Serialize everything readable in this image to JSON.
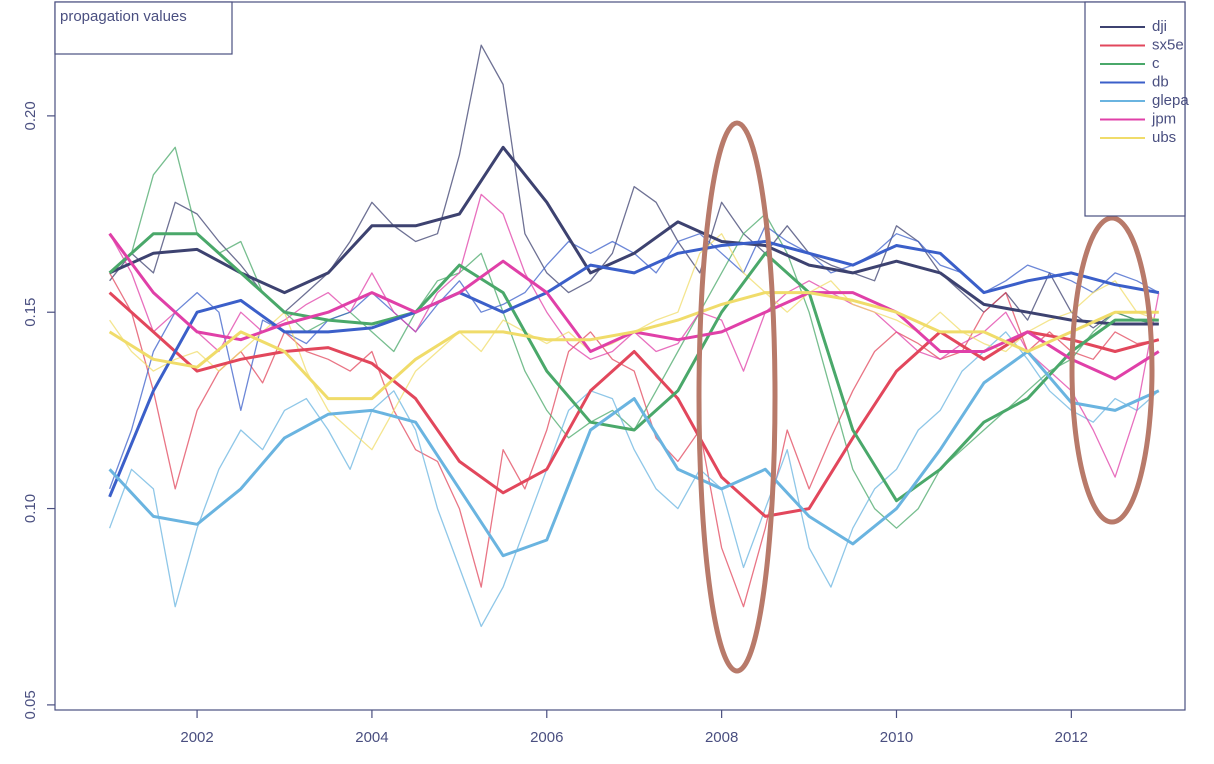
{
  "chart_data": {
    "type": "line",
    "title": "propagation values",
    "x": [
      2001,
      2001.25,
      2001.5,
      2001.75,
      2002,
      2002.25,
      2002.5,
      2002.75,
      2003,
      2003.25,
      2003.5,
      2003.75,
      2004,
      2004.25,
      2004.5,
      2004.75,
      2005,
      2005.25,
      2005.5,
      2005.75,
      2006,
      2006.25,
      2006.5,
      2006.75,
      2007,
      2007.25,
      2007.5,
      2007.75,
      2008,
      2008.25,
      2008.5,
      2008.75,
      2009,
      2009.25,
      2009.5,
      2009.75,
      2010,
      2010.25,
      2010.5,
      2010.75,
      2011,
      2011.25,
      2011.5,
      2011.75,
      2012,
      2012.25,
      2012.5,
      2012.75,
      2013
    ],
    "trend_x": [
      2001,
      2001.5,
      2002,
      2002.5,
      2003,
      2003.5,
      2004,
      2004.5,
      2005,
      2005.5,
      2006,
      2006.5,
      2007,
      2007.5,
      2008,
      2008.5,
      2009,
      2009.5,
      2010,
      2010.5,
      2011,
      2011.5,
      2012,
      2012.5,
      2013
    ],
    "series": [
      {
        "name": "dji",
        "color": "#3d4270",
        "values": [
          0.158,
          0.165,
          0.16,
          0.178,
          0.175,
          0.168,
          0.162,
          0.155,
          0.15,
          0.155,
          0.16,
          0.168,
          0.178,
          0.172,
          0.168,
          0.17,
          0.19,
          0.218,
          0.208,
          0.17,
          0.16,
          0.155,
          0.158,
          0.165,
          0.182,
          0.178,
          0.168,
          0.16,
          0.178,
          0.17,
          0.165,
          0.172,
          0.165,
          0.162,
          0.16,
          0.158,
          0.172,
          0.168,
          0.16,
          0.155,
          0.15,
          0.155,
          0.148,
          0.16,
          0.15,
          0.146,
          0.15,
          0.148,
          0.147
        ],
        "trend": [
          0.16,
          0.165,
          0.166,
          0.16,
          0.155,
          0.16,
          0.172,
          0.172,
          0.175,
          0.192,
          0.178,
          0.16,
          0.165,
          0.173,
          0.168,
          0.167,
          0.162,
          0.16,
          0.163,
          0.16,
          0.152,
          0.15,
          0.148,
          0.147,
          0.147
        ]
      },
      {
        "name": "sx5e",
        "color": "#e2475c",
        "values": [
          0.16,
          0.15,
          0.13,
          0.105,
          0.125,
          0.135,
          0.14,
          0.132,
          0.145,
          0.14,
          0.138,
          0.135,
          0.14,
          0.125,
          0.115,
          0.112,
          0.1,
          0.08,
          0.115,
          0.105,
          0.12,
          0.14,
          0.145,
          0.138,
          0.135,
          0.118,
          0.112,
          0.12,
          0.09,
          0.075,
          0.095,
          0.12,
          0.105,
          0.118,
          0.13,
          0.14,
          0.145,
          0.142,
          0.138,
          0.14,
          0.15,
          0.155,
          0.14,
          0.145,
          0.14,
          0.138,
          0.145,
          0.142,
          0.143
        ],
        "trend": [
          0.155,
          0.145,
          0.135,
          0.138,
          0.14,
          0.141,
          0.137,
          0.128,
          0.112,
          0.104,
          0.11,
          0.13,
          0.14,
          0.128,
          0.108,
          0.098,
          0.1,
          0.118,
          0.135,
          0.145,
          0.138,
          0.145,
          0.143,
          0.14,
          0.143
        ]
      },
      {
        "name": "c",
        "color": "#4aa86a",
        "values": [
          0.16,
          0.165,
          0.185,
          0.192,
          0.17,
          0.165,
          0.168,
          0.155,
          0.15,
          0.145,
          0.148,
          0.15,
          0.145,
          0.14,
          0.15,
          0.158,
          0.16,
          0.165,
          0.15,
          0.135,
          0.125,
          0.118,
          0.122,
          0.125,
          0.12,
          0.13,
          0.14,
          0.15,
          0.16,
          0.17,
          0.175,
          0.165,
          0.15,
          0.13,
          0.11,
          0.1,
          0.095,
          0.1,
          0.11,
          0.115,
          0.12,
          0.125,
          0.13,
          0.135,
          0.138,
          0.145,
          0.15,
          0.148,
          0.147
        ],
        "trend": [
          0.16,
          0.17,
          0.17,
          0.16,
          0.15,
          0.148,
          0.147,
          0.15,
          0.162,
          0.155,
          0.135,
          0.122,
          0.12,
          0.13,
          0.15,
          0.165,
          0.155,
          0.12,
          0.102,
          0.11,
          0.122,
          0.128,
          0.14,
          0.148,
          0.148
        ]
      },
      {
        "name": "db",
        "color": "#3b5fc9",
        "values": [
          0.105,
          0.12,
          0.14,
          0.15,
          0.155,
          0.15,
          0.125,
          0.148,
          0.145,
          0.142,
          0.148,
          0.15,
          0.155,
          0.15,
          0.145,
          0.152,
          0.158,
          0.15,
          0.152,
          0.155,
          0.162,
          0.168,
          0.165,
          0.168,
          0.165,
          0.16,
          0.168,
          0.17,
          0.165,
          0.16,
          0.172,
          0.168,
          0.165,
          0.16,
          0.162,
          0.165,
          0.17,
          0.168,
          0.162,
          0.16,
          0.155,
          0.158,
          0.162,
          0.16,
          0.158,
          0.155,
          0.16,
          0.158,
          0.155
        ],
        "trend": [
          0.103,
          0.13,
          0.15,
          0.153,
          0.145,
          0.145,
          0.146,
          0.15,
          0.155,
          0.15,
          0.155,
          0.162,
          0.16,
          0.165,
          0.167,
          0.168,
          0.165,
          0.162,
          0.167,
          0.165,
          0.155,
          0.158,
          0.16,
          0.157,
          0.155
        ]
      },
      {
        "name": "glepa",
        "color": "#6ab4e0",
        "values": [
          0.095,
          0.11,
          0.105,
          0.075,
          0.095,
          0.11,
          0.12,
          0.115,
          0.125,
          0.128,
          0.12,
          0.11,
          0.125,
          0.13,
          0.12,
          0.1,
          0.085,
          0.07,
          0.08,
          0.095,
          0.11,
          0.125,
          0.13,
          0.128,
          0.115,
          0.105,
          0.1,
          0.11,
          0.105,
          0.085,
          0.1,
          0.115,
          0.09,
          0.08,
          0.095,
          0.105,
          0.11,
          0.12,
          0.125,
          0.135,
          0.14,
          0.145,
          0.138,
          0.13,
          0.125,
          0.122,
          0.128,
          0.125,
          0.13
        ],
        "trend": [
          0.11,
          0.098,
          0.096,
          0.105,
          0.118,
          0.124,
          0.125,
          0.122,
          0.105,
          0.088,
          0.092,
          0.12,
          0.128,
          0.11,
          0.105,
          0.11,
          0.098,
          0.091,
          0.1,
          0.115,
          0.132,
          0.14,
          0.127,
          0.125,
          0.13
        ]
      },
      {
        "name": "jpm",
        "color": "#e040a8",
        "values": [
          0.17,
          0.16,
          0.145,
          0.15,
          0.145,
          0.14,
          0.15,
          0.145,
          0.148,
          0.152,
          0.155,
          0.15,
          0.16,
          0.15,
          0.145,
          0.155,
          0.16,
          0.18,
          0.175,
          0.16,
          0.15,
          0.142,
          0.138,
          0.14,
          0.145,
          0.14,
          0.142,
          0.15,
          0.148,
          0.135,
          0.15,
          0.155,
          0.158,
          0.155,
          0.152,
          0.15,
          0.145,
          0.14,
          0.138,
          0.142,
          0.145,
          0.15,
          0.14,
          0.135,
          0.13,
          0.12,
          0.108,
          0.125,
          0.155
        ],
        "trend": [
          0.17,
          0.155,
          0.145,
          0.143,
          0.147,
          0.15,
          0.155,
          0.15,
          0.155,
          0.163,
          0.155,
          0.14,
          0.145,
          0.143,
          0.145,
          0.15,
          0.155,
          0.155,
          0.15,
          0.14,
          0.14,
          0.145,
          0.138,
          0.133,
          0.14
        ]
      },
      {
        "name": "ubs",
        "color": "#f0dc6a",
        "values": [
          0.148,
          0.14,
          0.135,
          0.138,
          0.14,
          0.135,
          0.14,
          0.145,
          0.15,
          0.135,
          0.125,
          0.12,
          0.115,
          0.125,
          0.135,
          0.14,
          0.145,
          0.14,
          0.148,
          0.145,
          0.142,
          0.145,
          0.14,
          0.142,
          0.145,
          0.148,
          0.15,
          0.165,
          0.17,
          0.16,
          0.155,
          0.15,
          0.155,
          0.158,
          0.152,
          0.15,
          0.148,
          0.145,
          0.15,
          0.145,
          0.142,
          0.14,
          0.145,
          0.148,
          0.15,
          0.155,
          0.158,
          0.15,
          0.148
        ],
        "trend": [
          0.145,
          0.138,
          0.136,
          0.145,
          0.14,
          0.128,
          0.128,
          0.138,
          0.145,
          0.145,
          0.143,
          0.143,
          0.145,
          0.148,
          0.152,
          0.155,
          0.155,
          0.153,
          0.15,
          0.145,
          0.145,
          0.14,
          0.145,
          0.15,
          0.15
        ]
      }
    ],
    "xlim": [
      2000.375,
      2013.3
    ],
    "xticks": [
      2002,
      2004,
      2006,
      2008,
      2010,
      2012
    ],
    "ylim": [
      0.0487,
      0.229
    ],
    "yticks": [
      0.05,
      {
        "value": 0.1,
        "label": "0.10"
      },
      0.15,
      {
        "value": 0.2,
        "label": "0.20"
      }
    ],
    "legend": "top-right"
  }
}
